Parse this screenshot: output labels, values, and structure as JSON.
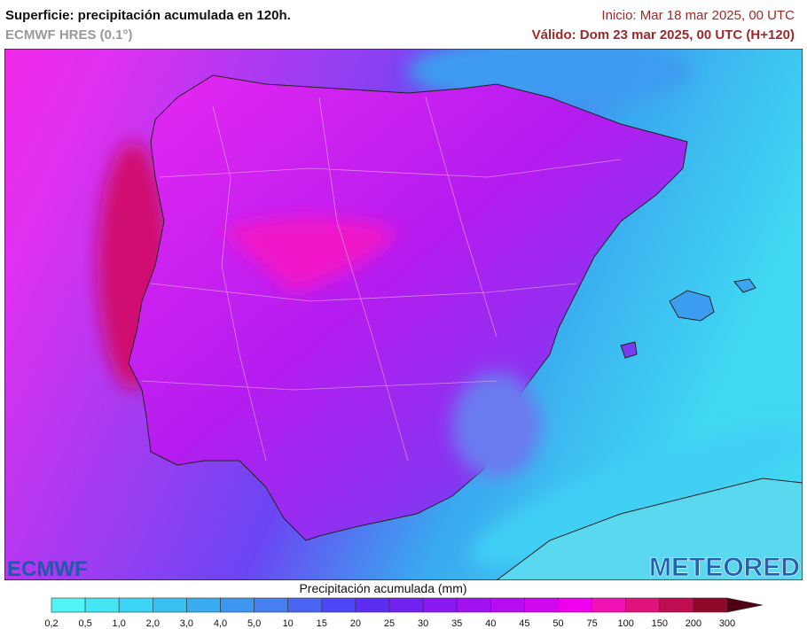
{
  "header": {
    "title": "Superficie: precipitación acumulada en 120h.",
    "model": "ECMWF HRES (0.1°)",
    "init": "Inicio: Mar 18 mar 2025, 00 UTC",
    "valid": "Válido: Dom 23 mar 2025, 00 UTC (H+120)"
  },
  "logos": {
    "left": "ECMWF",
    "right": "METEORED"
  },
  "legend": {
    "title": "Precipitación acumulada (mm)",
    "ticks": [
      "0,2",
      "0,5",
      "1,0",
      "2,0",
      "3,0",
      "4,0",
      "5,0",
      "10",
      "15",
      "20",
      "25",
      "30",
      "35",
      "40",
      "45",
      "50",
      "75",
      "100",
      "150",
      "200",
      "300"
    ],
    "colors": [
      "#52f4f6",
      "#44e6f6",
      "#3cd4f4",
      "#38c0f2",
      "#3aacf0",
      "#3f96f0",
      "#4680f0",
      "#4a64f4",
      "#4c46f6",
      "#5c2ef2",
      "#7222f0",
      "#8a18f0",
      "#a012f0",
      "#b80cf0",
      "#d008f0",
      "#f000ec",
      "#f012b4",
      "#e0127c",
      "#c00c50",
      "#900828"
    ],
    "arrow_color": "#500014"
  }
}
